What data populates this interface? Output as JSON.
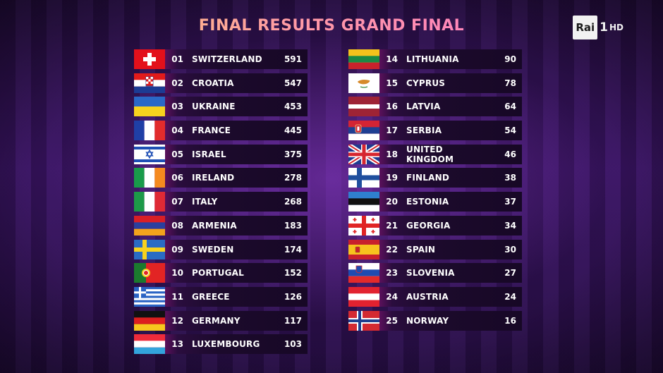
{
  "title": "FINAL RESULTS GRAND FINAL",
  "logo": {
    "brand": "Rai",
    "channel": "1",
    "quality": "HD"
  },
  "results": [
    {
      "rank": "01",
      "country": "SWITZERLAND",
      "points": "591",
      "flag": "switzerland-flag-icon"
    },
    {
      "rank": "02",
      "country": "CROATIA",
      "points": "547",
      "flag": "croatia-flag-icon"
    },
    {
      "rank": "03",
      "country": "UKRAINE",
      "points": "453",
      "flag": "ukraine-flag-icon"
    },
    {
      "rank": "04",
      "country": "FRANCE",
      "points": "445",
      "flag": "france-flag-icon"
    },
    {
      "rank": "05",
      "country": "ISRAEL",
      "points": "375",
      "flag": "israel-flag-icon"
    },
    {
      "rank": "06",
      "country": "IRELAND",
      "points": "278",
      "flag": "ireland-flag-icon"
    },
    {
      "rank": "07",
      "country": "ITALY",
      "points": "268",
      "flag": "italy-flag-icon"
    },
    {
      "rank": "08",
      "country": "ARMENIA",
      "points": "183",
      "flag": "armenia-flag-icon"
    },
    {
      "rank": "09",
      "country": "SWEDEN",
      "points": "174",
      "flag": "sweden-flag-icon"
    },
    {
      "rank": "10",
      "country": "PORTUGAL",
      "points": "152",
      "flag": "portugal-flag-icon"
    },
    {
      "rank": "11",
      "country": "GREECE",
      "points": "126",
      "flag": "greece-flag-icon"
    },
    {
      "rank": "12",
      "country": "GERMANY",
      "points": "117",
      "flag": "germany-flag-icon"
    },
    {
      "rank": "13",
      "country": "LUXEMBOURG",
      "points": "103",
      "flag": "luxembourg-flag-icon"
    },
    {
      "rank": "14",
      "country": "LITHUANIA",
      "points": "90",
      "flag": "lithuania-flag-icon"
    },
    {
      "rank": "15",
      "country": "CYPRUS",
      "points": "78",
      "flag": "cyprus-flag-icon"
    },
    {
      "rank": "16",
      "country": "LATVIA",
      "points": "64",
      "flag": "latvia-flag-icon"
    },
    {
      "rank": "17",
      "country": "SERBIA",
      "points": "54",
      "flag": "serbia-flag-icon"
    },
    {
      "rank": "18",
      "country": "UNITED KINGDOM",
      "points": "46",
      "flag": "united-kingdom-flag-icon"
    },
    {
      "rank": "19",
      "country": "FINLAND",
      "points": "38",
      "flag": "finland-flag-icon"
    },
    {
      "rank": "20",
      "country": "ESTONIA",
      "points": "37",
      "flag": "estonia-flag-icon"
    },
    {
      "rank": "21",
      "country": "GEORGIA",
      "points": "34",
      "flag": "georgia-flag-icon"
    },
    {
      "rank": "22",
      "country": "SPAIN",
      "points": "30",
      "flag": "spain-flag-icon"
    },
    {
      "rank": "23",
      "country": "SLOVENIA",
      "points": "27",
      "flag": "slovenia-flag-icon"
    },
    {
      "rank": "24",
      "country": "AUSTRIA",
      "points": "24",
      "flag": "austria-flag-icon"
    },
    {
      "rank": "25",
      "country": "NORWAY",
      "points": "16",
      "flag": "norway-flag-icon"
    }
  ]
}
